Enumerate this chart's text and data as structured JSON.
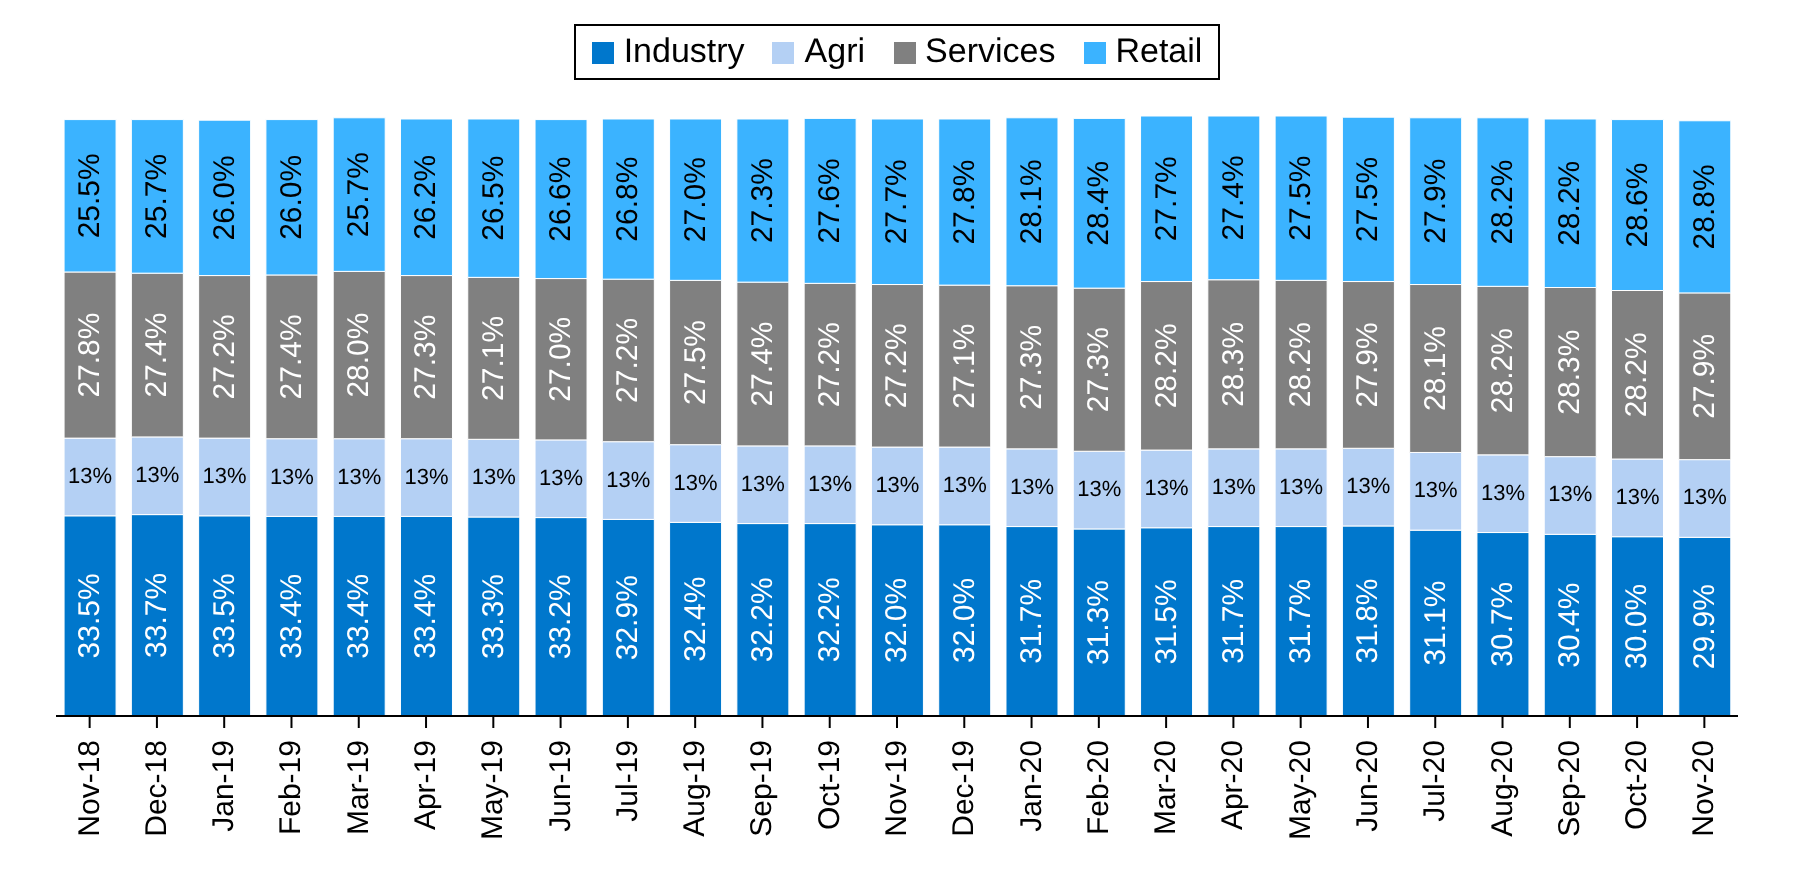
{
  "chart_data": {
    "type": "bar",
    "stacked": true,
    "legend": "top",
    "categories": [
      "Nov-18",
      "Dec-18",
      "Jan-19",
      "Feb-19",
      "Mar-19",
      "Apr-19",
      "May-19",
      "Jun-19",
      "Jul-19",
      "Aug-19",
      "Sep-19",
      "Oct-19",
      "Nov-19",
      "Dec-19",
      "Jan-20",
      "Feb-20",
      "Mar-20",
      "Apr-20",
      "May-20",
      "Jun-20",
      "Jul-20",
      "Aug-20",
      "Sep-20",
      "Oct-20",
      "Nov-20"
    ],
    "series": [
      {
        "name": "Industry",
        "color": "#0077cc",
        "values": [
          33.5,
          33.7,
          33.5,
          33.4,
          33.4,
          33.4,
          33.3,
          33.2,
          32.9,
          32.4,
          32.2,
          32.2,
          32.0,
          32.0,
          31.7,
          31.3,
          31.5,
          31.7,
          31.7,
          31.8,
          31.1,
          30.7,
          30.4,
          30.0,
          29.9
        ],
        "value_labels": [
          "33.5%",
          "33.7%",
          "33.5%",
          "33.4%",
          "33.4%",
          "33.4%",
          "33.3%",
          "33.2%",
          "32.9%",
          "32.4%",
          "32.2%",
          "32.2%",
          "32.0%",
          "32.0%",
          "31.7%",
          "31.3%",
          "31.5%",
          "31.7%",
          "31.7%",
          "31.8%",
          "31.1%",
          "30.7%",
          "30.4%",
          "30.0%",
          "29.9%"
        ]
      },
      {
        "name": "Agri",
        "color": "#b4d0f4",
        "values": [
          13,
          13,
          13,
          13,
          13,
          13,
          13,
          13,
          13,
          13,
          13,
          13,
          13,
          13,
          13,
          13,
          13,
          13,
          13,
          13,
          13,
          13,
          13,
          13,
          13
        ],
        "value_labels": [
          "13%",
          "13%",
          "13%",
          "13%",
          "13%",
          "13%",
          "13%",
          "13%",
          "13%",
          "13%",
          "13%",
          "13%",
          "13%",
          "13%",
          "13%",
          "13%",
          "13%",
          "13%",
          "13%",
          "13%",
          "13%",
          "13%",
          "13%",
          "13%",
          "13%"
        ]
      },
      {
        "name": "Services",
        "color": "#808080",
        "values": [
          27.8,
          27.4,
          27.2,
          27.4,
          28.0,
          27.3,
          27.1,
          27.0,
          27.2,
          27.5,
          27.4,
          27.2,
          27.2,
          27.1,
          27.3,
          27.3,
          28.2,
          28.3,
          28.2,
          27.9,
          28.1,
          28.2,
          28.3,
          28.2,
          27.9
        ],
        "value_labels": [
          "27.8%",
          "27.4%",
          "27.2%",
          "27.4%",
          "28.0%",
          "27.3%",
          "27.1%",
          "27.0%",
          "27.2%",
          "27.5%",
          "27.4%",
          "27.2%",
          "27.2%",
          "27.1%",
          "27.3%",
          "27.3%",
          "28.2%",
          "28.3%",
          "28.2%",
          "27.9%",
          "28.1%",
          "28.2%",
          "28.3%",
          "28.2%",
          "27.9%"
        ]
      },
      {
        "name": "Retail",
        "color": "#3bb3ff",
        "values": [
          25.5,
          25.7,
          26.0,
          26.0,
          25.7,
          26.2,
          26.5,
          26.6,
          26.8,
          27.0,
          27.3,
          27.6,
          27.7,
          27.8,
          28.1,
          28.4,
          27.7,
          27.4,
          27.5,
          27.5,
          27.9,
          28.2,
          28.2,
          28.6,
          28.8
        ],
        "value_labels": [
          "25.5%",
          "25.7%",
          "26.0%",
          "26.0%",
          "25.7%",
          "26.2%",
          "26.5%",
          "26.6%",
          "26.8%",
          "27.0%",
          "27.3%",
          "27.6%",
          "27.7%",
          "27.8%",
          "28.1%",
          "28.4%",
          "27.7%",
          "27.4%",
          "27.5%",
          "27.5%",
          "27.9%",
          "28.2%",
          "28.2%",
          "28.6%",
          "28.8%"
        ]
      }
    ]
  }
}
